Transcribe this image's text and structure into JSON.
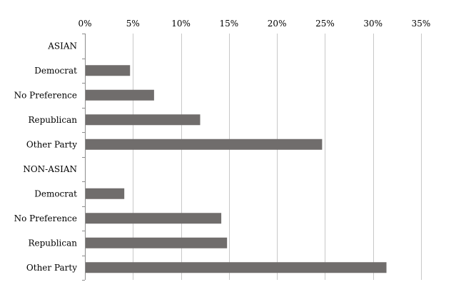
{
  "chart_data": {
    "type": "bar",
    "orientation": "horizontal",
    "title": "",
    "xlabel": "",
    "ylabel": "",
    "xlim": [
      0,
      35
    ],
    "x_ticks": [
      "0%",
      "5%",
      "10%",
      "15%",
      "20%",
      "25%",
      "30%",
      "35%"
    ],
    "x_axis_position": "top",
    "grid": "vertical",
    "legend": "none",
    "bar_color": "#706d6c",
    "grid_color": "#c8c8c8",
    "categories": [
      "ASIAN",
      "Democrat",
      "No Preference",
      "Republican",
      "Other Party",
      "NON-ASIAN",
      "Democrat",
      "No Preference",
      "Republican",
      "Other Party"
    ],
    "values": [
      null,
      4.7,
      7.2,
      12.0,
      24.7,
      null,
      4.1,
      14.2,
      14.8,
      31.4
    ]
  }
}
